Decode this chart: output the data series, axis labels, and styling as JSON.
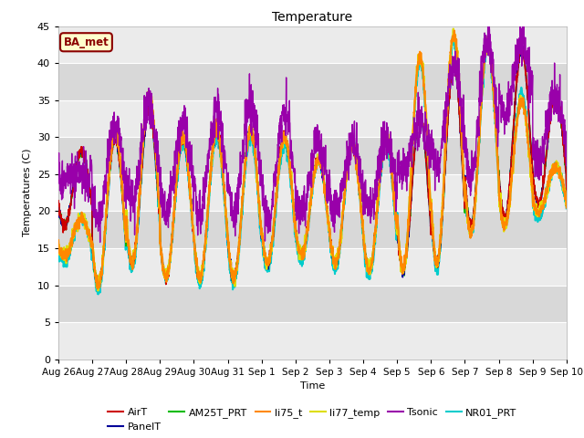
{
  "title": "Temperature",
  "ylabel": "Temperatures (C)",
  "xlabel": "Time",
  "ylim": [
    0,
    45
  ],
  "yticks": [
    0,
    5,
    10,
    15,
    20,
    25,
    30,
    35,
    40,
    45
  ],
  "background_color": "#ffffff",
  "plot_bg_color": "#d8d8d8",
  "annotation_text": "BA_met",
  "annotation_bg": "#ffffcc",
  "annotation_border": "#8B0000",
  "series": {
    "AirT": {
      "color": "#cc0000",
      "lw": 1.2,
      "zorder": 4
    },
    "PanelT": {
      "color": "#000099",
      "lw": 1.2,
      "zorder": 4
    },
    "AM25T_PRT": {
      "color": "#00bb00",
      "lw": 1.2,
      "zorder": 4
    },
    "li75_t": {
      "color": "#ff8800",
      "lw": 1.5,
      "zorder": 5
    },
    "li77_temp": {
      "color": "#dddd00",
      "lw": 1.5,
      "zorder": 5
    },
    "Tsonic": {
      "color": "#9900aa",
      "lw": 1.0,
      "zorder": 6
    },
    "NR01_PRT": {
      "color": "#00cccc",
      "lw": 1.5,
      "zorder": 3
    }
  },
  "x_tick_labels": [
    "Aug 26",
    "Aug 27",
    "Aug 28",
    "Aug 29",
    "Aug 30",
    "Aug 31",
    "Sep 1",
    "Sep 2",
    "Sep 3",
    "Sep 4",
    "Sep 5",
    "Sep 6",
    "Sep 7",
    "Sep 8",
    "Sep 9",
    "Sep 10"
  ],
  "x_tick_positions": [
    0,
    1,
    2,
    3,
    4,
    5,
    6,
    7,
    8,
    9,
    10,
    11,
    12,
    13,
    14,
    15
  ]
}
